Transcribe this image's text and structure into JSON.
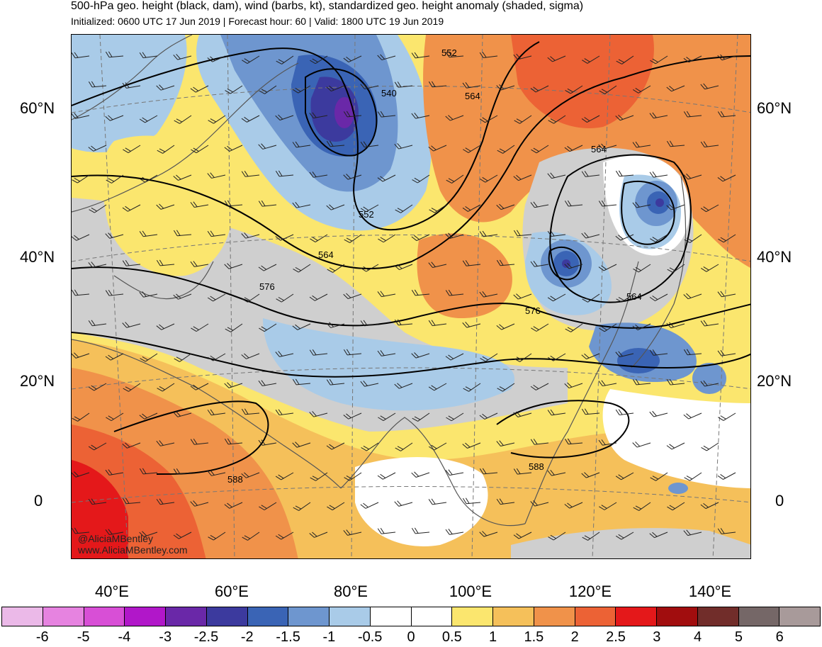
{
  "header": {
    "title": "500-hPa geo. height (black, dam), wind (barbs, kt), standardized geo. height anomaly (shaded, sigma)",
    "subtitle": "Initialized: 0600 UTC 17 Jun 2019 | Forecast hour: 60 | Valid: 1800 UTC 19 Jun 2019"
  },
  "axes": {
    "lat_left": [
      "60°N",
      "40°N",
      "20°N",
      "0"
    ],
    "lat_right": [
      "60°N",
      "40°N",
      "20°N",
      "0"
    ],
    "lon": [
      "40°E",
      "60°E",
      "80°E",
      "100°E",
      "120°E",
      "140°E"
    ]
  },
  "contour_labels": {
    "c552_top": "552",
    "c540": "540",
    "c564_top": "564",
    "c564_ne": "564",
    "c552_mid": "552",
    "c564_mid": "564",
    "c576_w": "576",
    "c576_e": "576",
    "c564_se": "564",
    "c588_w": "588",
    "c588_e": "588"
  },
  "credit": {
    "handle": "@AliciaMBentley",
    "site": "www.AliciaMBentley.com"
  },
  "colorbar": {
    "colors": [
      "#ebb9e8",
      "#e683e0",
      "#d84fd6",
      "#b117c9",
      "#6a28a8",
      "#3c3a9e",
      "#3a64b5",
      "#6e96cf",
      "#a9cbe8",
      "#ffffff",
      "#ffffff",
      "#fbe66e",
      "#f5c05a",
      "#f0924a",
      "#ec6235",
      "#e4181a",
      "#a10d0e",
      "#712d2a",
      "#756767",
      "#a89a9a"
    ],
    "labels": [
      "-6",
      "-5",
      "-4",
      "-3",
      "-2.5",
      "-2",
      "-1.5",
      "-1",
      "-0.5",
      "0",
      "0.5",
      "1",
      "1.5",
      "2",
      "2.5",
      "3",
      "4",
      "5",
      "6"
    ]
  },
  "anomaly_colors": {
    "strong_neg": "#3a64b5",
    "neg": "#6e96cf",
    "weak_neg": "#a9cbe8",
    "neutral_grey": "#cfcfcf",
    "weak_pos": "#fbe66e",
    "pos": "#f5c05a",
    "pos2": "#f0924a",
    "pos3": "#ec6235",
    "pos4": "#e4181a"
  }
}
